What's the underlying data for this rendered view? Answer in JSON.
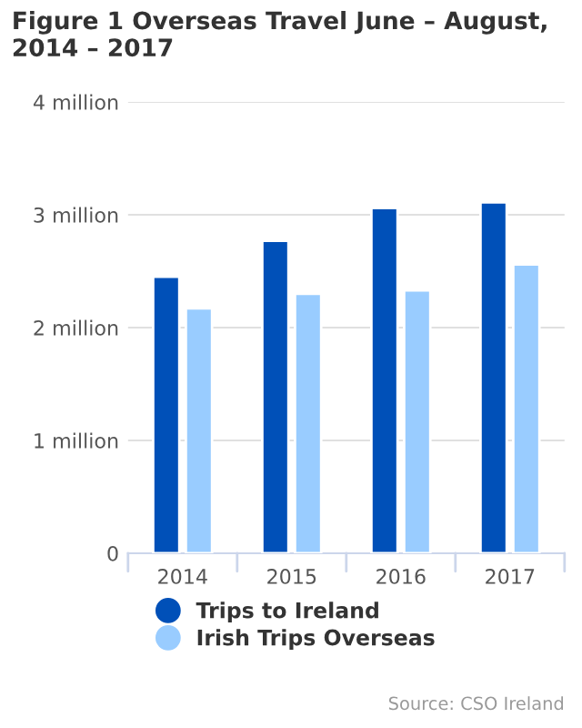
{
  "chart_data": {
    "type": "bar",
    "title": "Figure 1 Overseas Travel June – August, 2014 – 2017",
    "categories": [
      "2014",
      "2015",
      "2016",
      "2017"
    ],
    "series": [
      {
        "name": "Trips to Ireland",
        "color": "#0050b8",
        "values": [
          2.45,
          2.77,
          3.06,
          3.11
        ]
      },
      {
        "name": "Irish Trips Overseas",
        "color": "#99ccff",
        "values": [
          2.17,
          2.3,
          2.33,
          2.56
        ]
      }
    ],
    "ylim": [
      0,
      4
    ],
    "yticks": [
      0,
      {
        "value": 1,
        "label": "1 million"
      },
      {
        "value": 2,
        "label": "2 million"
      },
      {
        "value": 3,
        "label": "3 million"
      },
      {
        "value": 4,
        "label": "4 million"
      }
    ],
    "grid": "y",
    "legend": "bottom",
    "annotations": [
      "Source: CSO Ireland"
    ]
  }
}
